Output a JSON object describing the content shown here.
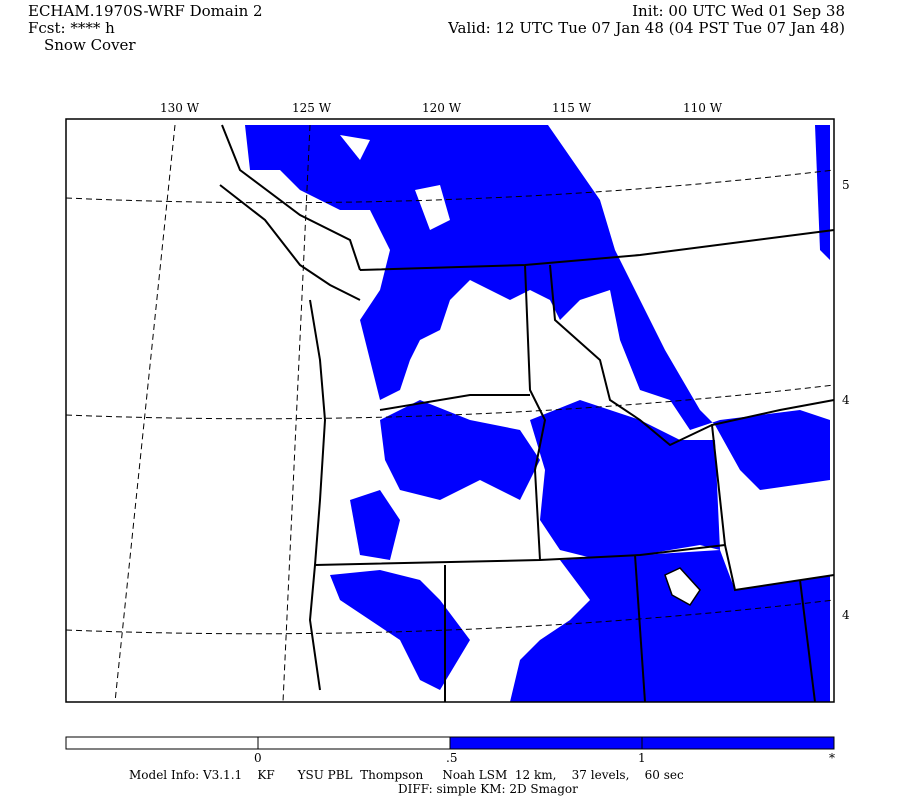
{
  "header": {
    "model": "ECHAM.1970S-WRF Domain 2",
    "fcst": "Fcst: **** h",
    "field": "Snow Cover",
    "init": "Init: 00 UTC Wed 01 Sep 38",
    "valid": "Valid: 12 UTC Tue 07 Jan 48 (04 PST Tue 07 Jan 48)"
  },
  "map": {
    "lon_labels": [
      "130 W",
      "125 W",
      "120 W",
      "115 W",
      "110 W"
    ],
    "lat_labels": [
      "5",
      "4",
      "4"
    ],
    "fill_color": "#0000ff",
    "field_threshold": 0.5
  },
  "colorbar": {
    "labels": [
      "0",
      ".5",
      "1",
      "*"
    ],
    "colors": [
      "#ffffff",
      "#ffffff",
      "#0000ff",
      "#0000ff"
    ]
  },
  "footer": {
    "line1": "Model Info: V3.1.1    KF      YSU PBL  Thompson     Noah LSM  12 km,    37 levels,    60 sec",
    "line2": "DIFF: simple KM: 2D Smagor"
  }
}
